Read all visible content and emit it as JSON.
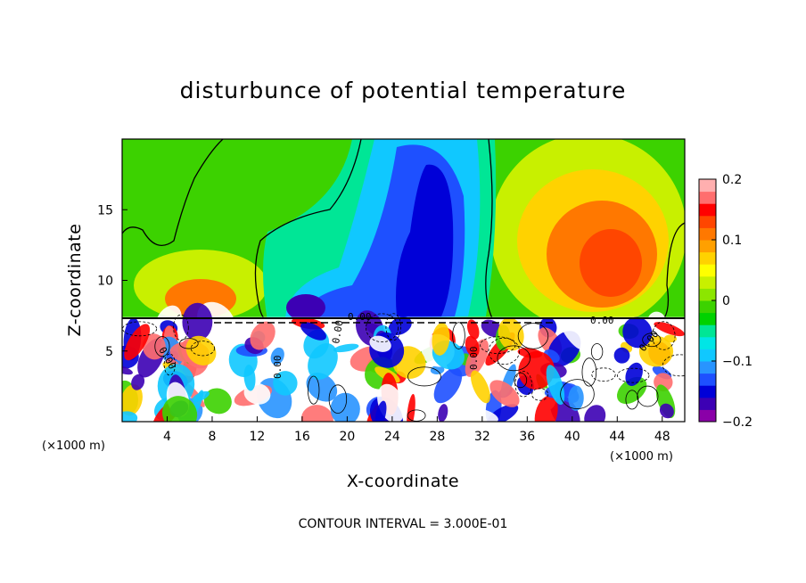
{
  "chart_data": {
    "type": "heatmap",
    "title": "disturbunce of potential temperature",
    "xlabel": "X-coordinate",
    "ylabel": "Z-coordinate",
    "x_unit": "(×1000 m)",
    "xlim": [
      0,
      50
    ],
    "ylim": [
      0,
      20
    ],
    "x_ticks": [
      4,
      8,
      12,
      16,
      20,
      24,
      28,
      32,
      36,
      40,
      44,
      48
    ],
    "y_ticks": [
      5,
      10,
      15
    ],
    "colorbar": {
      "range": [
        -0.2,
        0.2
      ],
      "tick_values": [
        0.2,
        0.1,
        0,
        -0.1,
        -0.2
      ],
      "tick_labels": [
        "0.2",
        "0.1",
        "0",
        "−0.1",
        "−0.2"
      ],
      "colors": [
        "#8a00a8",
        "#3c00b4",
        "#0000d8",
        "#1e50ff",
        "#2894ff",
        "#10c8ff",
        "#00e6e6",
        "#00e696",
        "#00d200",
        "#3cd200",
        "#8ce600",
        "#c8f000",
        "#ffff00",
        "#ffd200",
        "#ffa000",
        "#ff7800",
        "#ff4600",
        "#ff0000",
        "#ff6e6e",
        "#ffafaf"
      ]
    },
    "contour_labels": [
      "0.00",
      "0.00",
      "0.00",
      "0.00",
      "0.00",
      "0.00",
      "0.00"
    ],
    "field_summary": {
      "interface_height": 7.4,
      "upper_features": [
        {
          "x": 27,
          "z": 13,
          "value": -0.18
        },
        {
          "x": 16.5,
          "z": 9.6,
          "value": -0.17
        },
        {
          "x": 42,
          "z": 12.5,
          "value": 0.13
        },
        {
          "x": 6.5,
          "z": 9.0,
          "value": 0.13
        }
      ]
    },
    "footnote": "CONTOUR INTERVAL = 3.000E-01"
  }
}
